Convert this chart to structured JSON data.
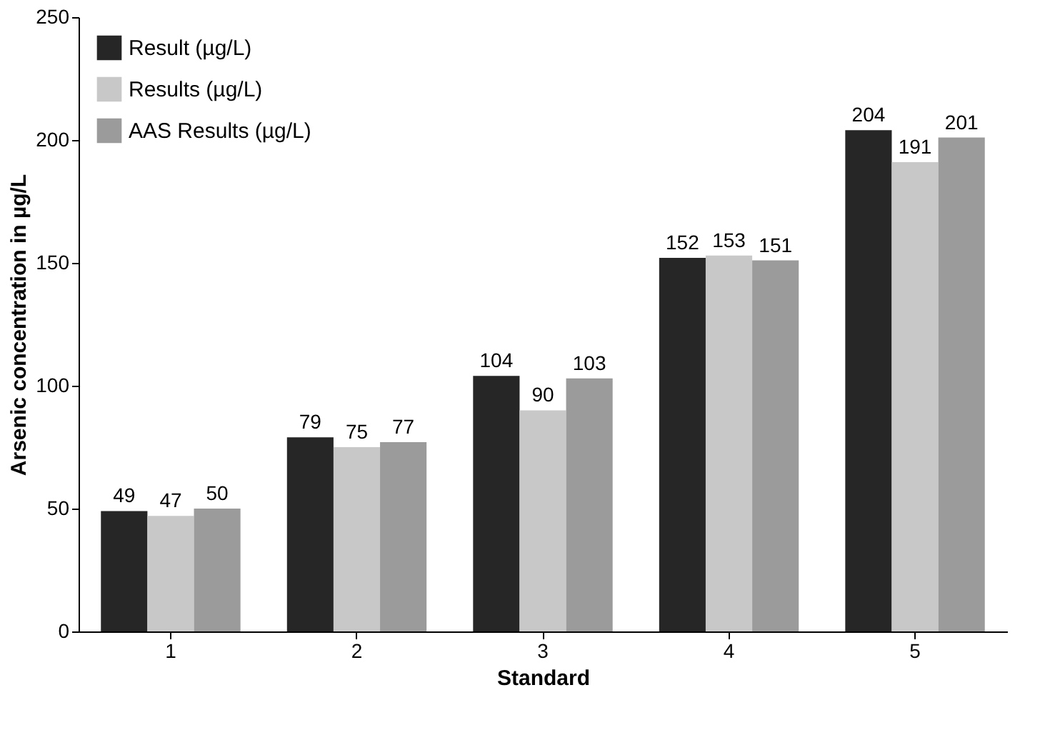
{
  "chart_data": {
    "type": "bar",
    "xlabel": "Standard",
    "ylabel": "Arsenic concentration in µg/L",
    "categories": [
      "1",
      "2",
      "3",
      "4",
      "5"
    ],
    "series": [
      {
        "name": "Result (µg/L)",
        "color": "#262626",
        "values": [
          49,
          79,
          104,
          152,
          204
        ]
      },
      {
        "name": "Results (µg/L)",
        "color": "#c8c8c8",
        "values": [
          47,
          75,
          90,
          153,
          191
        ]
      },
      {
        "name": "AAS Results (µg/L)",
        "color": "#9b9b9b",
        "values": [
          50,
          77,
          103,
          151,
          201
        ]
      }
    ],
    "ylim": [
      0,
      250
    ],
    "yticks": [
      0,
      50,
      100,
      150,
      200,
      250
    ],
    "data_labels": true,
    "grid": false,
    "legend": "top left"
  }
}
